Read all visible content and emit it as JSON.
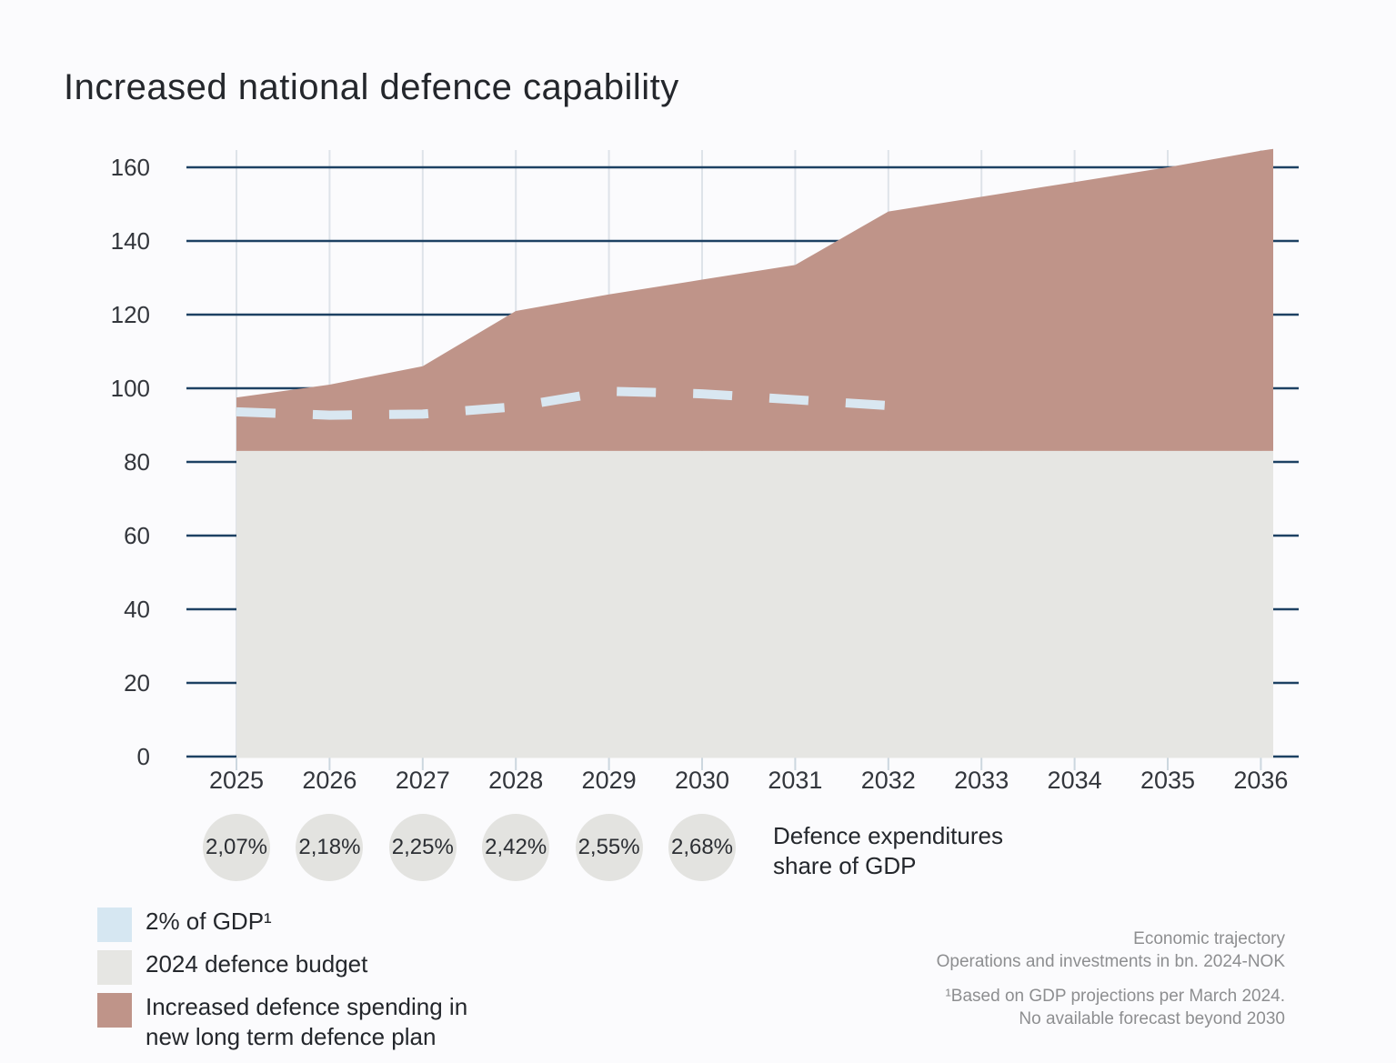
{
  "title": "Increased national defence capability",
  "colors": {
    "background": "#fbfbfd",
    "grid_major": "#1d4163",
    "grid_minor": "#dee3e9",
    "axis_tick_minor": "#ccd7df",
    "budget_area": "#e6e6e3",
    "increase_area": "#bf9489",
    "gdp_line": "#d9e7f1",
    "legend_gdp_swatch": "#d6e7f2",
    "badge_circle": "#e3e3e0"
  },
  "chart_data": {
    "type": "area",
    "title": "Increased national defence capability",
    "years": [
      2025,
      2026,
      2027,
      2028,
      2029,
      2030,
      2031,
      2032,
      2033,
      2034,
      2035,
      2036
    ],
    "ylim": [
      0,
      160
    ],
    "yticks": [
      0,
      20,
      40,
      60,
      80,
      100,
      120,
      140,
      160
    ],
    "grid": "horizontal-major and vertical-minor",
    "series": [
      {
        "name": "2024 defence budget",
        "note": "constant baseline, bn. 2024-NOK",
        "values": [
          83,
          83,
          83,
          83,
          83,
          83,
          83,
          83,
          83,
          83,
          83,
          83
        ]
      },
      {
        "name": "Total defence spending (top of stacked area)",
        "values": [
          97.5,
          101,
          106,
          121,
          125.5,
          129.5,
          133.5,
          148,
          152,
          156,
          160,
          164.5
        ]
      },
      {
        "name": "Increased defence spending in new long term defence plan",
        "note": "stacked on top of 2024 defence budget",
        "values": [
          14.5,
          18,
          23,
          38,
          42.5,
          46.5,
          50.5,
          65,
          69,
          73,
          77,
          81.5
        ]
      },
      {
        "name": "2% of GDP",
        "style": "dashed line, ends 2032",
        "years": [
          2025,
          2026,
          2027,
          2028,
          2029,
          2030,
          2031,
          2032
        ],
        "values": [
          93.6,
          92.7,
          93.0,
          95.0,
          99.2,
          98.5,
          96.9,
          95.3
        ]
      }
    ],
    "gdp_share": [
      {
        "year": 2025,
        "label": "2,07%"
      },
      {
        "year": 2026,
        "label": "2,18%"
      },
      {
        "year": 2027,
        "label": "2,25%"
      },
      {
        "year": 2028,
        "label": "2,42%"
      },
      {
        "year": 2029,
        "label": "2,55%"
      },
      {
        "year": 2030,
        "label": "2,68%"
      }
    ]
  },
  "gdp_share_caption": {
    "line1": "Defence expenditures",
    "line2": "share of GDP"
  },
  "legend": {
    "items": [
      {
        "label": "2% of GDP¹"
      },
      {
        "label": "2024 defence budget"
      },
      {
        "label_line1": "Increased defence spending in",
        "label_line2": "new long term defence plan"
      }
    ]
  },
  "notes": {
    "source_line1": "Economic trajectory",
    "source_line2": "Operations and investments in bn. 2024-NOK",
    "footnote_line1": "¹Based on GDP projections per March 2024.",
    "footnote_line2": "No available forecast beyond 2030"
  }
}
